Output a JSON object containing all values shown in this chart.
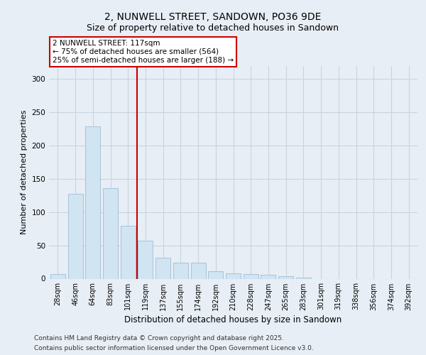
{
  "title1": "2, NUNWELL STREET, SANDOWN, PO36 9DE",
  "title2": "Size of property relative to detached houses in Sandown",
  "xlabel": "Distribution of detached houses by size in Sandown",
  "ylabel": "Number of detached properties",
  "categories": [
    "28sqm",
    "46sqm",
    "64sqm",
    "83sqm",
    "101sqm",
    "119sqm",
    "137sqm",
    "155sqm",
    "174sqm",
    "192sqm",
    "210sqm",
    "228sqm",
    "247sqm",
    "265sqm",
    "283sqm",
    "301sqm",
    "319sqm",
    "338sqm",
    "356sqm",
    "374sqm",
    "392sqm"
  ],
  "values": [
    7,
    128,
    229,
    136,
    80,
    57,
    31,
    24,
    24,
    11,
    8,
    7,
    6,
    4,
    2,
    0,
    0,
    0,
    0,
    0,
    0
  ],
  "bar_color": "#d0e4f2",
  "bar_edge_color": "#a0bdd4",
  "vline_x_idx": 4.5,
  "vline_color": "#cc0000",
  "annotation_text": "2 NUNWELL STREET: 117sqm\n← 75% of detached houses are smaller (564)\n25% of semi-detached houses are larger (188) →",
  "ylim_max": 320,
  "yticks": [
    0,
    50,
    100,
    150,
    200,
    250,
    300
  ],
  "bg_color": "#e8eef5",
  "grid_color": "#c8d4e0",
  "footer1": "Contains HM Land Registry data © Crown copyright and database right 2025.",
  "footer2": "Contains public sector information licensed under the Open Government Licence v3.0.",
  "title_fontsize": 10,
  "subtitle_fontsize": 9,
  "tick_fontsize": 7,
  "ylabel_fontsize": 8,
  "xlabel_fontsize": 8.5,
  "annot_fontsize": 7.5,
  "footer_fontsize": 6.5
}
